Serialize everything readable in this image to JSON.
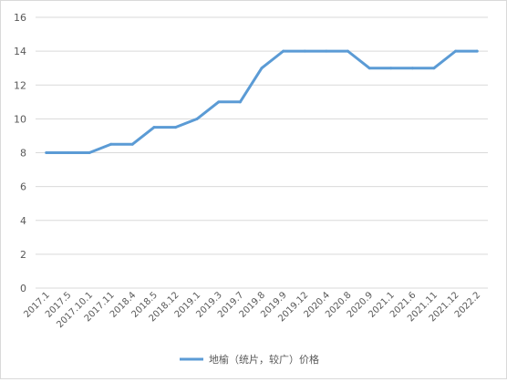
{
  "chart_data": {
    "type": "line",
    "title": "",
    "xlabel": "",
    "ylabel": "",
    "ylim": [
      0,
      16
    ],
    "yticks": [
      0,
      2,
      4,
      6,
      8,
      10,
      12,
      14,
      16
    ],
    "grid": true,
    "legend_position": "bottom",
    "categories": [
      "2017.1",
      "2017.5",
      "2017.10.1",
      "2017.11",
      "2018.4",
      "2018.5",
      "2018.12",
      "2019.1",
      "2019.3",
      "2019.7",
      "2019.8",
      "2019.9",
      "2019.12",
      "2020.4",
      "2020.8",
      "2020.9",
      "2021.1",
      "2021.6",
      "2021.11",
      "2021.12",
      "2022.2"
    ],
    "series": [
      {
        "name": "地榆（统片，较广）价格",
        "color": "#5b9bd5",
        "values": [
          8,
          8,
          8,
          8.5,
          8.5,
          9.5,
          9.5,
          10,
          11,
          11,
          13,
          14,
          14,
          14,
          14,
          13,
          13,
          13,
          13,
          14,
          14
        ]
      }
    ]
  }
}
